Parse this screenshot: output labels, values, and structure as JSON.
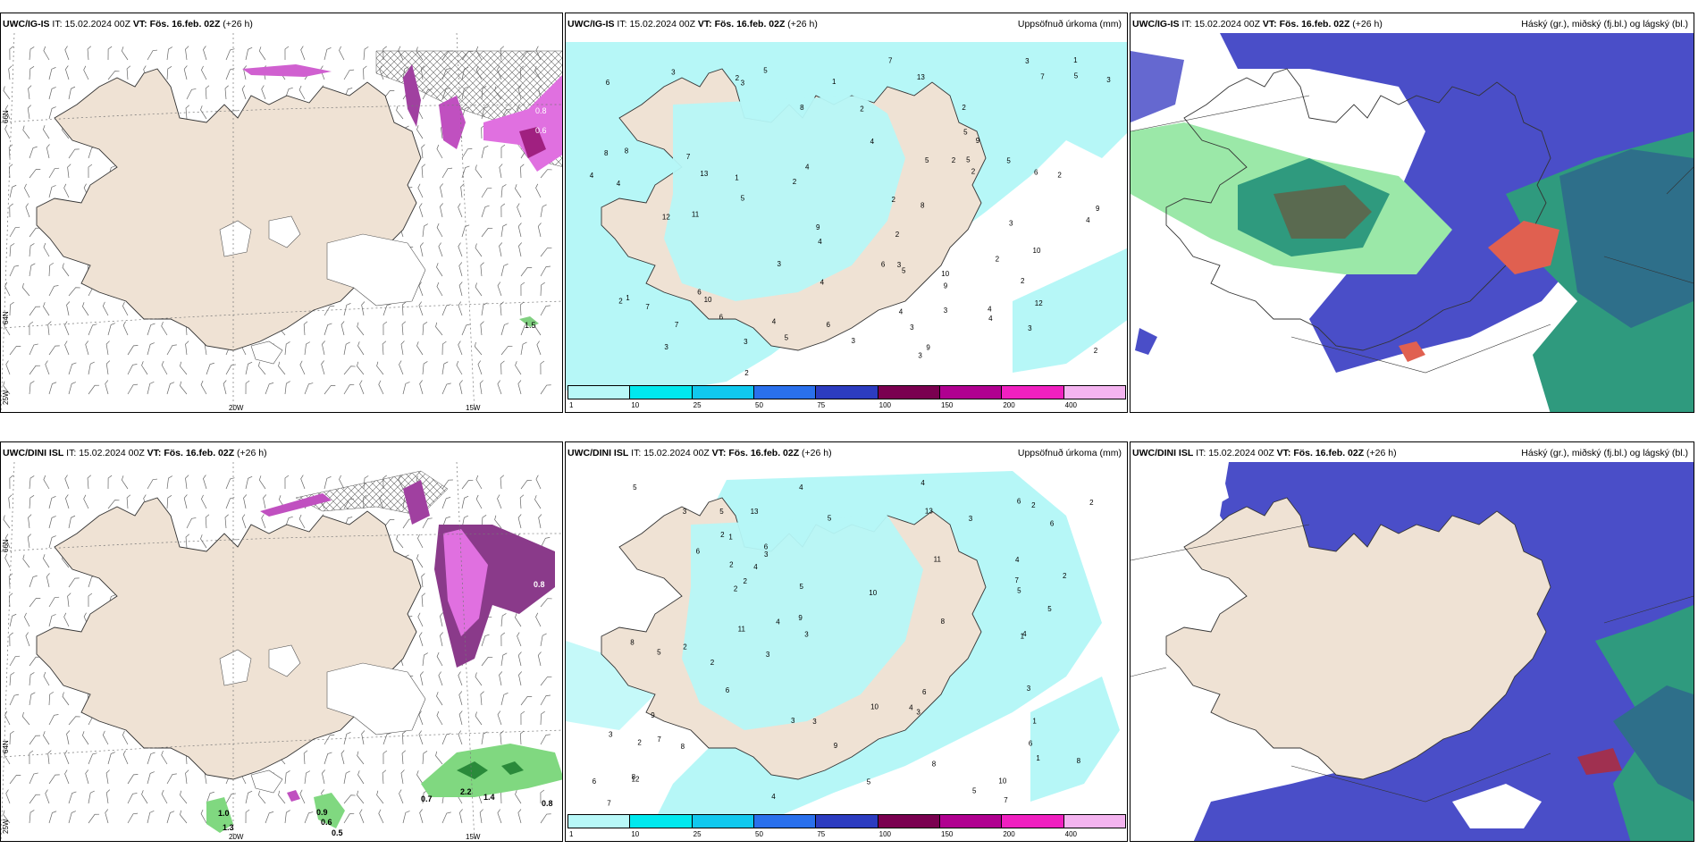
{
  "panels": [
    {
      "id": "p1",
      "model": "UWC/IG-IS",
      "it_label": "IT:",
      "it_value": "15.02.2024 00Z",
      "vt_label": "VT:",
      "vt_value": "Fös. 16.feb. 02Z",
      "lead": "(+26 h)",
      "right": "",
      "lat_labels": [
        "66N",
        "64N",
        "25W"
      ],
      "lon_labels": [
        "20W",
        "15W"
      ],
      "precip_labels": [
        "0.8",
        "0.6",
        "1.5"
      ]
    },
    {
      "id": "p2",
      "model": "UWC/IG-IS",
      "it_label": "IT:",
      "it_value": "15.02.2024 00Z",
      "vt_label": "VT:",
      "vt_value": "Fös. 16.feb. 02Z",
      "lead": "(+26 h)",
      "right": "Uppsöfnuð úrkoma (mm)",
      "numbers": [
        "9",
        "3",
        "10",
        "7",
        "5",
        "3",
        "4",
        "5",
        "4",
        "6",
        "7",
        "8",
        "9",
        "3",
        "2",
        "3",
        "4",
        "7",
        "2",
        "6",
        "4",
        "5",
        "3",
        "4",
        "8",
        "9",
        "11",
        "13",
        "3",
        "8",
        "9",
        "1",
        "2",
        "4",
        "5",
        "6",
        "7",
        "8",
        "9",
        "10",
        "1",
        "2",
        "3",
        "12",
        "13",
        "10",
        "6",
        "4",
        "2",
        "5",
        "3",
        "4",
        "1",
        "5",
        "6",
        "2",
        "3",
        "4",
        "2",
        "2",
        "4",
        "3",
        "5",
        "12",
        "2",
        "3",
        "3",
        "4",
        "3",
        "2",
        "2",
        "5",
        "7",
        "2",
        "5",
        "2",
        "3",
        "6",
        "2",
        "1"
      ]
    },
    {
      "id": "p3",
      "model": "UWC/IG-IS",
      "it_label": "IT:",
      "it_value": "15.02.2024 00Z",
      "vt_label": "VT:",
      "vt_value": "Fös. 16.feb. 02Z",
      "lead": "(+26 h)",
      "right": "Háský (gr.), miðský (fj.bl.) og lágský (bl.)"
    },
    {
      "id": "p4",
      "model": "UWC/DINI ISL",
      "it_label": "IT:",
      "it_value": "15.02.2024 00Z",
      "vt_label": "VT:",
      "vt_value": "Fös. 16.feb. 02Z",
      "lead": "(+26 h)",
      "right": "",
      "lat_labels": [
        "66N",
        "64N",
        "25W"
      ],
      "lon_labels": [
        "20W",
        "15W"
      ],
      "precip_labels": [
        "1.0",
        "1.3",
        "0.9",
        "0.6",
        "0.5",
        "0.7",
        "2.2",
        "1.4",
        "0.8",
        "0.8"
      ]
    },
    {
      "id": "p5",
      "model": "UWC/DINI ISL",
      "it_label": "IT:",
      "it_value": "15.02.2024 00Z",
      "vt_label": "VT:",
      "vt_value": "Fös. 16.feb. 02Z",
      "lead": "(+26 h)",
      "right": "Uppsöfnuð úrkoma (mm)",
      "numbers": [
        "2",
        "1",
        "2",
        "3",
        "4",
        "5",
        "6",
        "7",
        "8",
        "9",
        "10",
        "11",
        "12",
        "3",
        "5",
        "7",
        "8",
        "6",
        "4",
        "3",
        "2",
        "5",
        "6",
        "7",
        "8",
        "9",
        "10",
        "3",
        "4",
        "5",
        "6",
        "11",
        "13",
        "2",
        "3",
        "4",
        "5",
        "1",
        "2",
        "3",
        "4",
        "5",
        "6",
        "7",
        "8",
        "9",
        "10",
        "13",
        "2",
        "1",
        "3",
        "2",
        "4",
        "5",
        "6",
        "4",
        "8",
        "5",
        "6",
        "3",
        "2",
        "1",
        "2",
        "3",
        "4",
        "5",
        "6",
        "8",
        "2",
        "3"
      ]
    },
    {
      "id": "p6",
      "model": "UWC/DINI ISL",
      "it_label": "IT:",
      "it_value": "15.02.2024 00Z",
      "vt_label": "VT:",
      "vt_value": "Fös. 16.feb. 02Z",
      "lead": "(+26 h)",
      "right": "Háský (gr.), miðský (fj.bl.) og lágský (bl.)"
    }
  ],
  "colorbar": {
    "labels": [
      "1",
      "10",
      "25",
      "50",
      "75",
      "100",
      "150",
      "200",
      "400"
    ],
    "colors": [
      "#b8f8f8",
      "#00e8ee",
      "#10c8ee",
      "#2a70ec",
      "#2c3cc0",
      "#7a0050",
      "#b00090",
      "#f020c0",
      "#f4b4f0"
    ]
  },
  "colors": {
    "land": "#efe2d4",
    "precip_light": "#b6f7f7",
    "cloud_low": "#4a4ec8",
    "cloud_mid": "#2f9a7e",
    "cloud_high": "#5fd27a"
  }
}
